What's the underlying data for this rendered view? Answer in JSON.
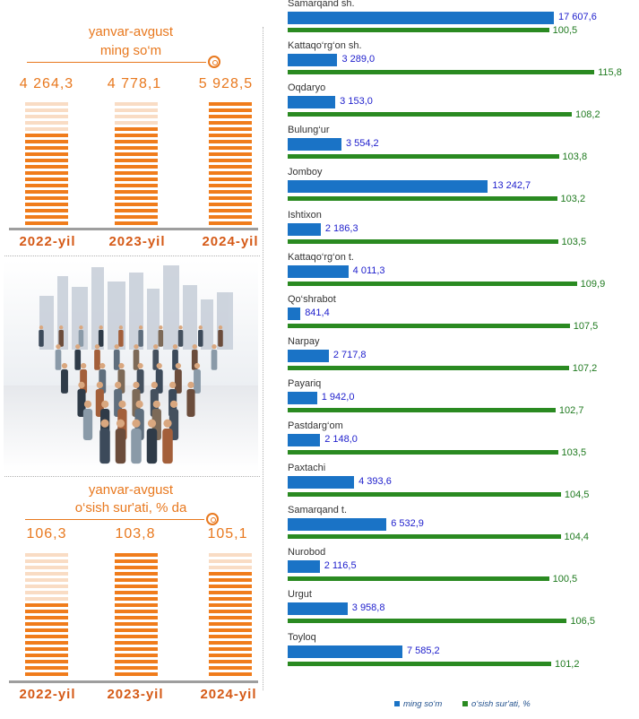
{
  "colors": {
    "accent_orange": "#e8781e",
    "stripe_orange": "#f07c1b",
    "stripe_light": "#f9dcc4",
    "bar_blue": "#1a73c6",
    "bar_green": "#2a8a21",
    "value_blue": "#1d1dcc",
    "value_green": "#1f7a1f"
  },
  "top_panel": {
    "title_line1": "yanvar-avgust",
    "title_line2": "ming so‘m",
    "values": [
      "4 264,3",
      "4 778,1",
      "5 928,5"
    ],
    "years": [
      "2022-yil",
      "2023-yil",
      "2024-yil"
    ],
    "fill_fractions": [
      0.73,
      0.82,
      1.0
    ]
  },
  "bottom_panel": {
    "title_line1": "yanvar-avgust",
    "title_line2": "o‘sish sur'ati, % da",
    "values": [
      "106,3",
      "103,8",
      "105,1"
    ],
    "years": [
      "2022-yil",
      "2023-yil",
      "2024-yil"
    ],
    "fill_fractions": [
      0.62,
      1.0,
      0.83
    ]
  },
  "illustration": {
    "icon": "crowd-of-people-illustration"
  },
  "chart_data": {
    "type": "bar",
    "orientation": "horizontal",
    "categories": [
      "Samarqand sh.",
      "Kattaqo‘rg‘on sh.",
      "Oqdaryo",
      "Bulung‘ur",
      "Jomboy",
      "Ishtixon",
      "Kattaqo‘rg‘on t.",
      "Qo‘shrabot",
      "Narpay",
      "Payariq",
      "Pastdarg‘om",
      "Paxtachi",
      "Samarqand t.",
      "Nurobod",
      "Urgut",
      "Toyloq"
    ],
    "series": [
      {
        "name": "ming so‘m",
        "color": "#1a73c6",
        "values": [
          17607.6,
          3289.0,
          3153.0,
          3554.2,
          13242.7,
          2186.3,
          4011.3,
          841.4,
          2717.8,
          1942.0,
          2148.0,
          4393.6,
          6532.9,
          2116.5,
          3958.8,
          7585.2
        ],
        "labels": [
          "17 607,6",
          "3 289,0",
          "3 153,0",
          "3 554,2",
          "13 242,7",
          "2 186,3",
          "4 011,3",
          "841,4",
          "2 717,8",
          "1 942,0",
          "2 148,0",
          "4 393,6",
          "6 532,9",
          "2 116,5",
          "3 958,8",
          "7 585,2"
        ]
      },
      {
        "name": "o‘sish sur'ati, %",
        "color": "#2a8a21",
        "values": [
          100.5,
          115.8,
          108.2,
          103.8,
          103.2,
          103.5,
          109.9,
          107.5,
          107.2,
          102.7,
          103.5,
          104.5,
          104.4,
          100.5,
          106.5,
          101.2
        ],
        "labels": [
          "100,5",
          "115,8",
          "108,2",
          "103,8",
          "103,2",
          "103,5",
          "109,9",
          "107,5",
          "107,2",
          "102,7",
          "103,5",
          "104,5",
          "104,4",
          "100,5",
          "106,5",
          "101,2"
        ]
      }
    ],
    "legend": {
      "position": "bottom",
      "items": [
        "ming so‘m",
        "o‘sish sur'ati, %"
      ]
    }
  }
}
